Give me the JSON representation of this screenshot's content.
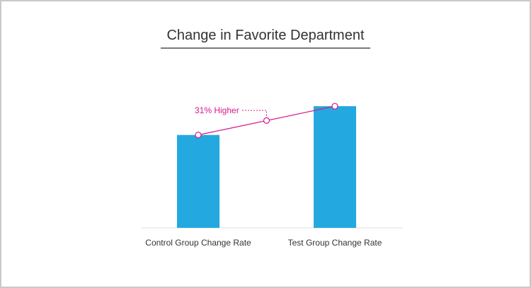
{
  "chart_data": {
    "type": "bar",
    "title": "Change in Favorite Department",
    "categories": [
      "Control Group Change Rate",
      "Test Group Change Rate"
    ],
    "values": [
      100,
      131
    ],
    "ylim": [
      0,
      160
    ],
    "grid": false,
    "annotation": {
      "text": "31% Higher",
      "color": "#d6198a"
    },
    "colors": {
      "bar": "#24a8e0",
      "annotation_line": "#d6198a",
      "title_underline": "#7a7a7a",
      "baseline": "#dddddd",
      "text": "#333333"
    }
  }
}
